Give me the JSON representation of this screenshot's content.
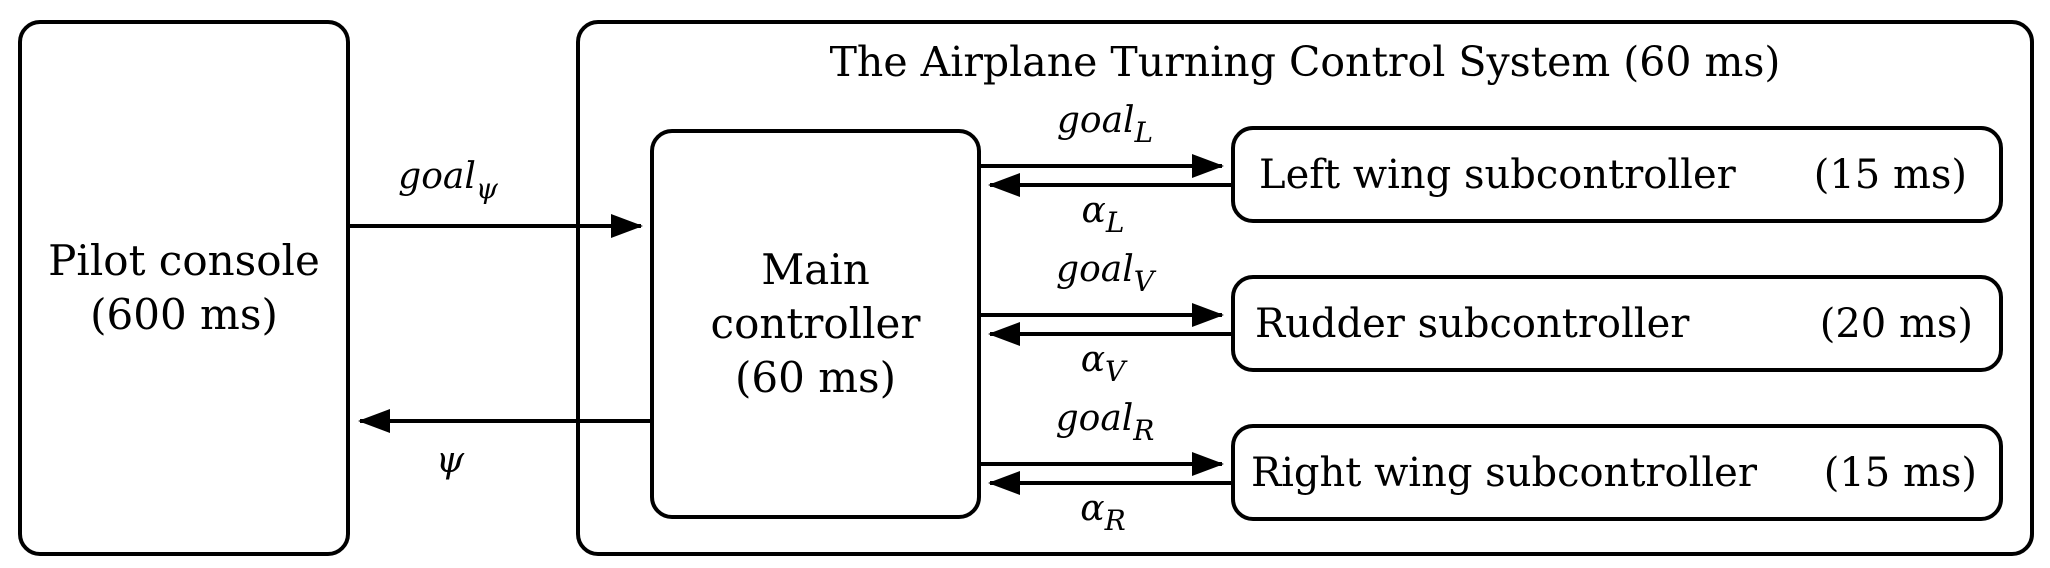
{
  "pilot": {
    "title": "Pilot console",
    "period": "(600 ms)"
  },
  "system": {
    "title": "The Airplane Turning Control System (60 ms)"
  },
  "main": {
    "line1": "Main",
    "line2": "controller",
    "period": "(60 ms)"
  },
  "subcontrollers": [
    {
      "name": "Left wing subcontroller",
      "period": "(15 ms)"
    },
    {
      "name": "Rudder subcontroller",
      "period": "(20 ms)"
    },
    {
      "name": "Right wing subcontroller",
      "period": "(15 ms)"
    }
  ],
  "signals": {
    "goal_psi": {
      "base": "goal",
      "sub": "ψ"
    },
    "psi": {
      "base": "ψ"
    },
    "goal_L": {
      "base": "goal",
      "sub": "L"
    },
    "alpha_L": {
      "base": "α",
      "sub": "L"
    },
    "goal_V": {
      "base": "goal",
      "sub": "V"
    },
    "alpha_V": {
      "base": "α",
      "sub": "V"
    },
    "goal_R": {
      "base": "goal",
      "sub": "R"
    },
    "alpha_R": {
      "base": "α",
      "sub": "R"
    }
  }
}
